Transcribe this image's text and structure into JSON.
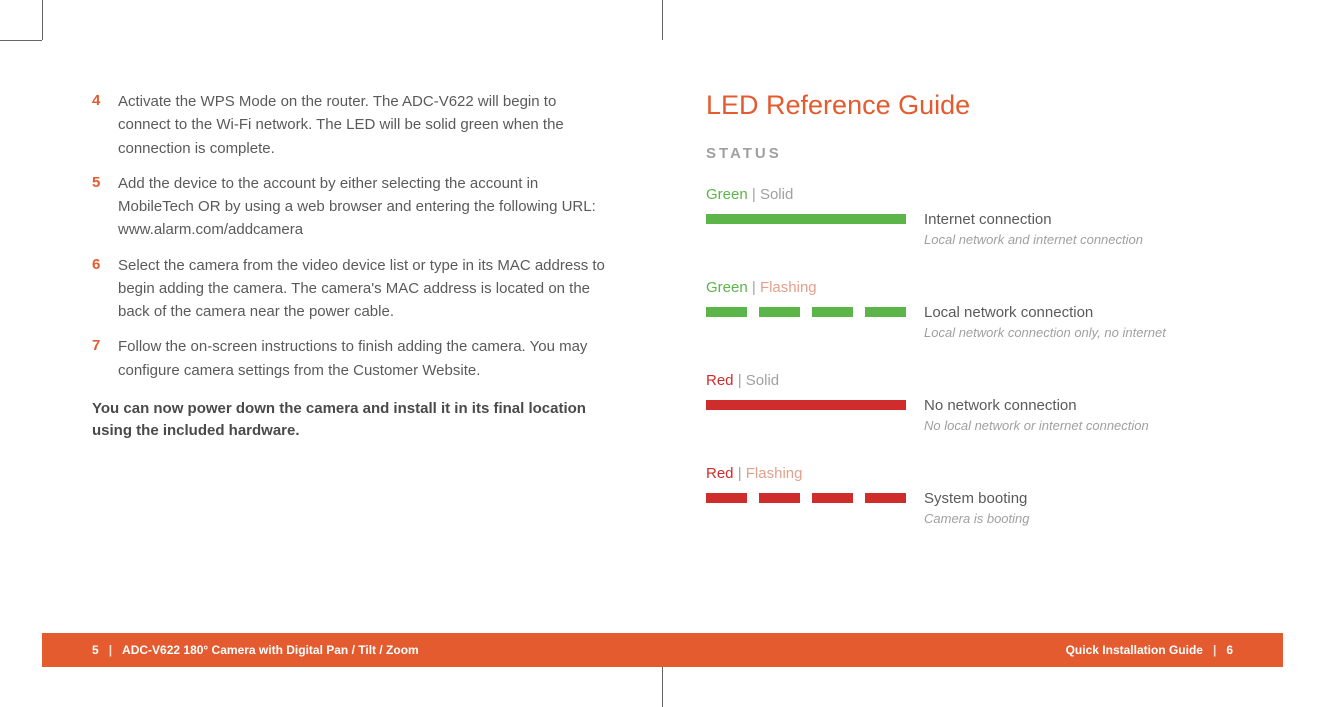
{
  "colors": {
    "accent_orange": "#e35b2f",
    "green": "#5cb548",
    "red": "#cf2c2c",
    "text_body": "#5a5a5a",
    "text_muted": "#a0a0a0",
    "flashing_label": "#e3a08c",
    "background": "#ffffff"
  },
  "left": {
    "steps": [
      {
        "n": "4",
        "text": "Activate the WPS Mode on the router. The ADC-V622 will begin to connect to the Wi-Fi network. The LED will be solid green when the connection is complete."
      },
      {
        "n": "5",
        "text": "Add the device to the account by either selecting the account in MobileTech OR by using a web browser and entering the following URL: www.alarm.com/addcamera"
      },
      {
        "n": "6",
        "text": "Select the camera from the video device list or type in its MAC address to begin adding the camera. The camera's MAC address is located on the back of the camera near the power cable."
      },
      {
        "n": "7",
        "text": "Follow the on-screen instructions to finish adding the camera. You may configure camera settings from the Customer Website."
      }
    ],
    "conclusion": "You can now power down the camera and install it in its final location using the included hardware."
  },
  "right": {
    "title": "LED Reference Guide",
    "status_label": "STATUS",
    "entries": [
      {
        "color_name": "Green",
        "color_class": "led-color-green",
        "state": "Solid",
        "state_class": "led-state",
        "bar_type": "solid",
        "bar_color": "bar-green",
        "title": "Internet connection",
        "sub": "Local network and internet connection"
      },
      {
        "color_name": "Green",
        "color_class": "led-color-green",
        "state": "Flashing",
        "state_class": "led-state-flashing",
        "bar_type": "flashing",
        "bar_color": "bar-green",
        "title": "Local network connection",
        "sub": "Local network connection only, no internet"
      },
      {
        "color_name": "Red",
        "color_class": "led-color-red",
        "state": "Solid",
        "state_class": "led-state",
        "bar_type": "solid",
        "bar_color": "bar-red",
        "title": "No network connection",
        "sub": "No local network or internet connection"
      },
      {
        "color_name": "Red",
        "color_class": "led-color-red",
        "state": "Flashing",
        "state_class": "led-state-flashing",
        "bar_type": "flashing",
        "bar_color": "bar-red",
        "title": "System booting",
        "sub": "Camera is booting"
      }
    ]
  },
  "footer": {
    "left_page": "5",
    "left_title": "ADC-V622 180° Camera with Digital Pan / Tilt / Zoom",
    "right_title": "Quick Installation Guide",
    "right_page": "6",
    "sep": "|"
  }
}
